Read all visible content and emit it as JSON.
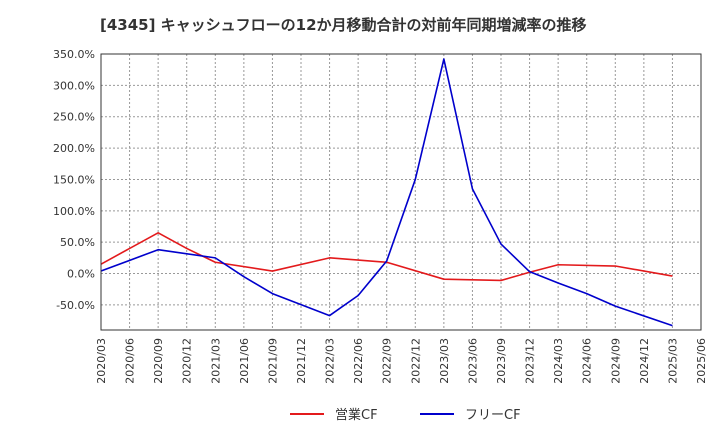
{
  "chart_data": {
    "type": "line",
    "title": "[4345]  キャッシュフローの12か月移動合計の対前年同期増減率の推移",
    "xlabel": "",
    "ylabel": "",
    "ylim": [
      -90,
      350
    ],
    "y_ticks": [
      "350.0%",
      "300.0%",
      "250.0%",
      "200.0%",
      "150.0%",
      "100.0%",
      "50.0%",
      "0.0%",
      "-50.0%"
    ],
    "y_tick_values": [
      350,
      300,
      250,
      200,
      150,
      100,
      50,
      0,
      -50
    ],
    "x_ticks": [
      "2020/03",
      "2020/06",
      "2020/09",
      "2020/12",
      "2021/03",
      "2021/06",
      "2021/09",
      "2021/12",
      "2022/03",
      "2022/06",
      "2022/09",
      "2022/12",
      "2023/03",
      "2023/06",
      "2023/09",
      "2023/12",
      "2024/03",
      "2024/06",
      "2024/09",
      "2024/12",
      "2025/03",
      "2025/06"
    ],
    "grid": true,
    "legend_position": "bottom-center",
    "series": [
      {
        "name": "営業CF",
        "color": "#e31a1c",
        "points": [
          [
            "2020/03",
            15
          ],
          [
            "2020/09",
            65
          ],
          [
            "2020/12",
            40
          ],
          [
            "2021/03",
            18
          ],
          [
            "2021/09",
            4
          ],
          [
            "2022/03",
            25
          ],
          [
            "2022/09",
            18
          ],
          [
            "2023/03",
            -9
          ],
          [
            "2023/09",
            -11
          ],
          [
            "2023/12",
            2
          ],
          [
            "2024/03",
            14
          ],
          [
            "2024/09",
            12
          ],
          [
            "2025/03",
            -4
          ]
        ]
      },
      {
        "name": "フリーCF",
        "color": "#0000cc",
        "points": [
          [
            "2020/03",
            4
          ],
          [
            "2020/09",
            38
          ],
          [
            "2021/03",
            25
          ],
          [
            "2021/06",
            -5
          ],
          [
            "2021/09",
            -32
          ],
          [
            "2022/03",
            -67
          ],
          [
            "2022/06",
            -35
          ],
          [
            "2022/09",
            20
          ],
          [
            "2022/12",
            150
          ],
          [
            "2023/03",
            342
          ],
          [
            "2023/06",
            135
          ],
          [
            "2023/09",
            47
          ],
          [
            "2023/12",
            3
          ],
          [
            "2024/03",
            -15
          ],
          [
            "2024/06",
            -32
          ],
          [
            "2024/09",
            -52
          ],
          [
            "2025/03",
            -83
          ]
        ]
      }
    ]
  }
}
